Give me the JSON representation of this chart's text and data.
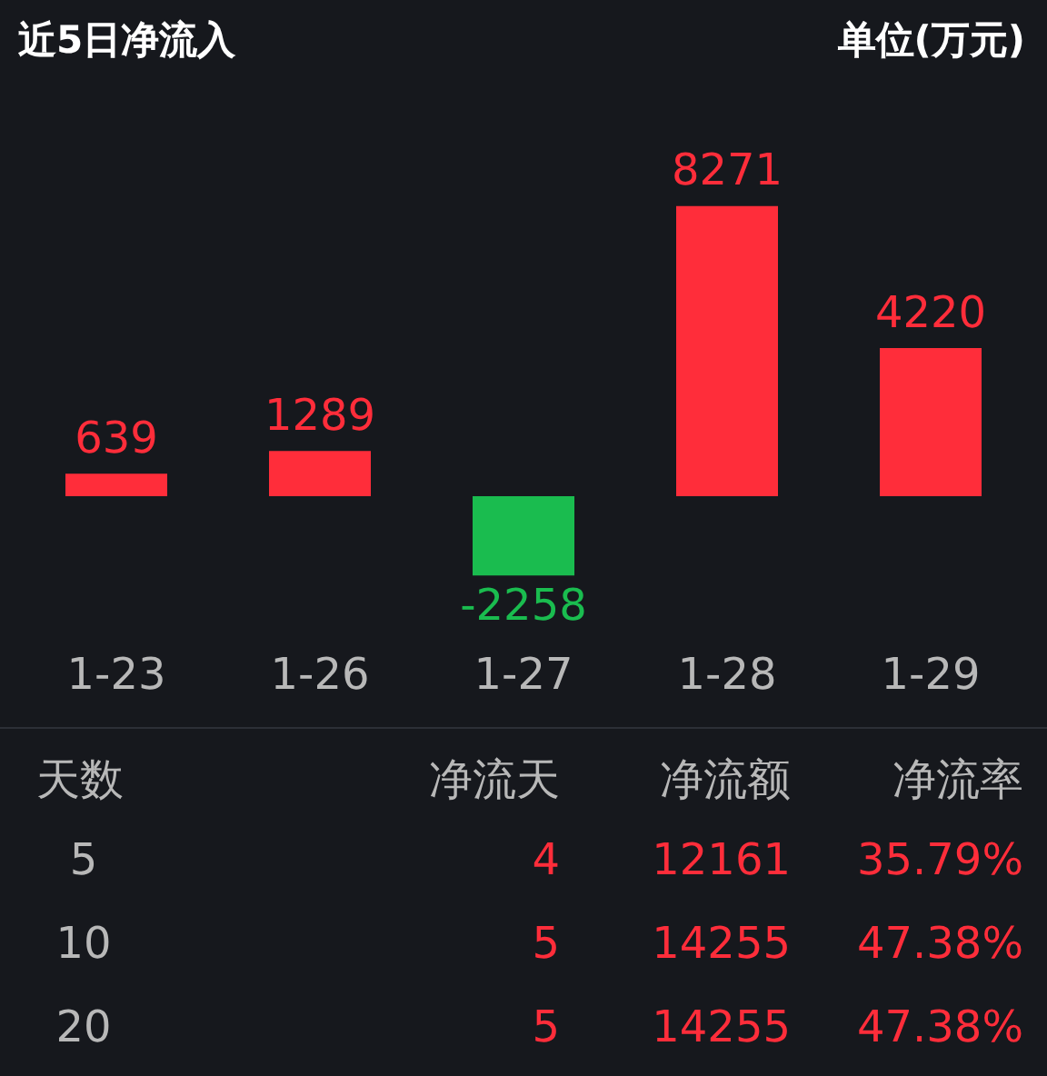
{
  "chart_data": [
    {
      "type": "bar",
      "title": "近5日净流入",
      "subtitle": "单位(万元)",
      "categories": [
        "1-23",
        "1-26",
        "1-27",
        "1-28",
        "1-29"
      ],
      "values": [
        639,
        1289,
        -2258,
        8271,
        4220
      ],
      "colors": [
        "#ff2d3a",
        "#ff2d3a",
        "#1abc4f",
        "#ff2d3a",
        "#ff2d3a"
      ],
      "data_labels": true
    },
    {
      "type": "other",
      "annotations": [
        "天数",
        "净流天",
        "净流额",
        "净流率",
        "5",
        "4",
        "12161",
        "35.79%",
        "10",
        "5",
        "14255",
        "47.38%",
        "20",
        "5",
        "14255",
        "47.38%"
      ]
    }
  ]
}
